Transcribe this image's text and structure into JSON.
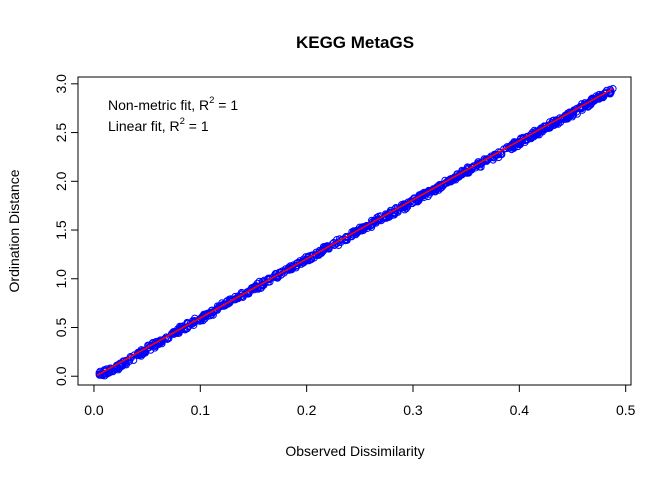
{
  "chart_data": {
    "type": "scatter",
    "title": "KEGG MetaGS",
    "xlabel": "Observed Dissimilarity",
    "ylabel": "Ordination Distance",
    "xlim": [
      -0.015,
      0.505
    ],
    "ylim": [
      -0.09,
      3.07
    ],
    "x_ticks": [
      0.0,
      0.1,
      0.2,
      0.3,
      0.4,
      0.5
    ],
    "x_tick_labels": [
      "0.0",
      "0.1",
      "0.2",
      "0.3",
      "0.4",
      "0.5"
    ],
    "y_ticks": [
      0.0,
      0.5,
      1.0,
      1.5,
      2.0,
      2.5,
      3.0
    ],
    "y_tick_labels": [
      "0.0",
      "0.5",
      "1.0",
      "1.5",
      "2.0",
      "2.5",
      "3.0"
    ],
    "grid": false,
    "legend": {
      "placement": "top-left",
      "entries": [
        {
          "prefix": "Non-metric fit, R",
          "superscript": "2",
          "suffix": " = 1"
        },
        {
          "prefix": "Linear fit, R",
          "superscript": "2",
          "suffix": " = 1"
        }
      ]
    },
    "series": [
      {
        "marker": "open-circle",
        "color": "#0000ff",
        "points_sample": [
          [
            0.005,
            0.02
          ],
          [
            0.01,
            0.03
          ],
          [
            0.02,
            0.08
          ],
          [
            0.03,
            0.14
          ],
          [
            0.05,
            0.28
          ],
          [
            0.075,
            0.44
          ],
          [
            0.1,
            0.59
          ],
          [
            0.15,
            0.9
          ],
          [
            0.2,
            1.2
          ],
          [
            0.25,
            1.5
          ],
          [
            0.3,
            1.79
          ],
          [
            0.35,
            2.1
          ],
          [
            0.4,
            2.4
          ],
          [
            0.45,
            2.7
          ],
          [
            0.488,
            2.95
          ]
        ]
      },
      {
        "marker": "line",
        "color": "#ff0000",
        "points": [
          [
            0.003,
            0.01
          ],
          [
            0.488,
            2.95
          ]
        ]
      }
    ]
  }
}
